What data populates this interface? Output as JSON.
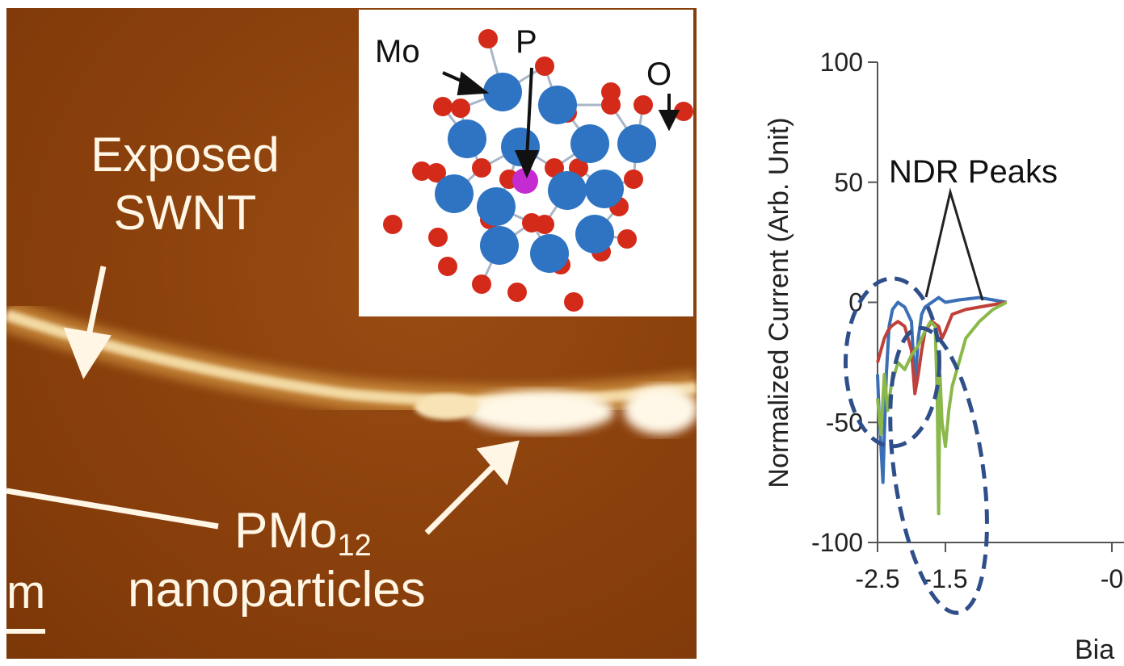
{
  "afm_panel": {
    "exposed_label_line1": "Exposed",
    "exposed_label_line2": "SWNT",
    "particle_label_main": "PMo",
    "particle_label_sub": "12",
    "particle_label_line2": "nanoparticles",
    "scale_bar_label": "m"
  },
  "inset": {
    "mo_label": "Mo",
    "p_label": "P",
    "o_label": "O",
    "colors": {
      "mo": "#2f74c2",
      "p": "#c42bd1",
      "o": "#d42a1a"
    }
  },
  "chart_data": {
    "type": "line",
    "ylabel": "Normalized Current (Arb. Unit)",
    "xlabel": "Bia",
    "annotation": "NDR Peaks",
    "x_ticks": [
      "-2.5",
      "-1.5",
      "-0"
    ],
    "y_ticks": [
      "100",
      "50",
      "0",
      "-50",
      "-100"
    ],
    "xlim": [
      -2.5,
      -0.5
    ],
    "ylim": [
      -100,
      100
    ],
    "series": [
      {
        "color": "#3a6fb5",
        "x": [
          -2.5,
          -2.48,
          -2.45,
          -2.42,
          -2.4,
          -2.37,
          -2.33,
          -2.28,
          -2.2,
          -2.1,
          -2.0,
          -1.95,
          -1.9,
          -1.85,
          -1.8,
          -1.7,
          -1.6,
          -1.5,
          -1.3,
          -1.0,
          -0.8,
          -0.6
        ],
        "y": [
          -30,
          -45,
          -60,
          -75,
          -55,
          -30,
          -10,
          -3,
          0,
          -2,
          -8,
          -35,
          -15,
          -5,
          -2,
          0,
          2,
          0,
          1,
          2,
          1,
          0
        ]
      },
      {
        "color": "#c0403a",
        "x": [
          -2.5,
          -2.45,
          -2.4,
          -2.35,
          -2.3,
          -2.2,
          -2.1,
          -2.0,
          -1.95,
          -1.9,
          -1.85,
          -1.8,
          -1.7,
          -1.6,
          -1.55,
          -1.5,
          -1.4,
          -1.2,
          -1.0,
          -0.8,
          -0.6
        ],
        "y": [
          -25,
          -20,
          -15,
          -12,
          -10,
          -8,
          -10,
          -20,
          -38,
          -30,
          -20,
          -12,
          -8,
          -10,
          -15,
          -12,
          -5,
          -3,
          -2,
          -1,
          0
        ]
      },
      {
        "color": "#8ab84a",
        "x": [
          -2.5,
          -2.45,
          -2.4,
          -2.35,
          -2.3,
          -2.25,
          -2.2,
          -2.1,
          -2.0,
          -1.9,
          -1.8,
          -1.72,
          -1.65,
          -1.62,
          -1.6,
          -1.58,
          -1.55,
          -1.5,
          -1.45,
          -1.4,
          -1.3,
          -1.2,
          -1.0,
          -0.8,
          -0.6
        ],
        "y": [
          -40,
          -55,
          -30,
          -45,
          -35,
          -30,
          -25,
          -28,
          -22,
          -18,
          -12,
          -8,
          -10,
          -40,
          -88,
          -30,
          -50,
          -60,
          -45,
          -35,
          -25,
          -15,
          -8,
          -3,
          0
        ]
      }
    ]
  }
}
